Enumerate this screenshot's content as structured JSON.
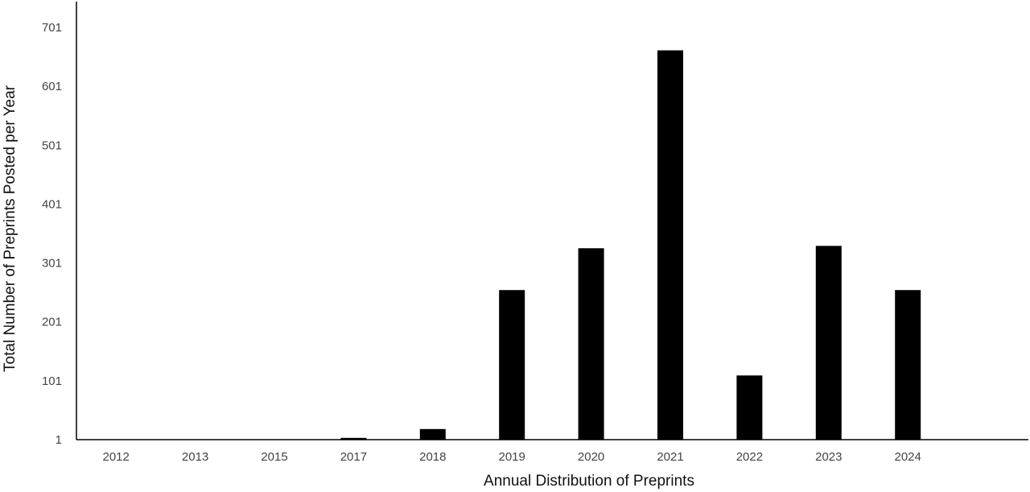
{
  "chart_data": {
    "type": "bar",
    "title": "",
    "xlabel": "Annual  Distribution of Preprints",
    "ylabel": "Total  Number of Preprints Posted per Year",
    "categories": [
      "2012",
      "2013",
      "2015",
      "2017",
      "2018",
      "2019",
      "2020",
      "2021",
      "2022",
      "2023",
      "2024"
    ],
    "values": [
      1,
      1,
      1,
      4,
      19,
      255,
      326,
      662,
      110,
      330,
      255
    ],
    "yticks": [
      "1",
      "101",
      "201",
      "301",
      "401",
      "501",
      "601",
      "701"
    ],
    "ylim": [
      1,
      701
    ],
    "grid": false,
    "legend": "none",
    "bar_color": "#000000"
  }
}
